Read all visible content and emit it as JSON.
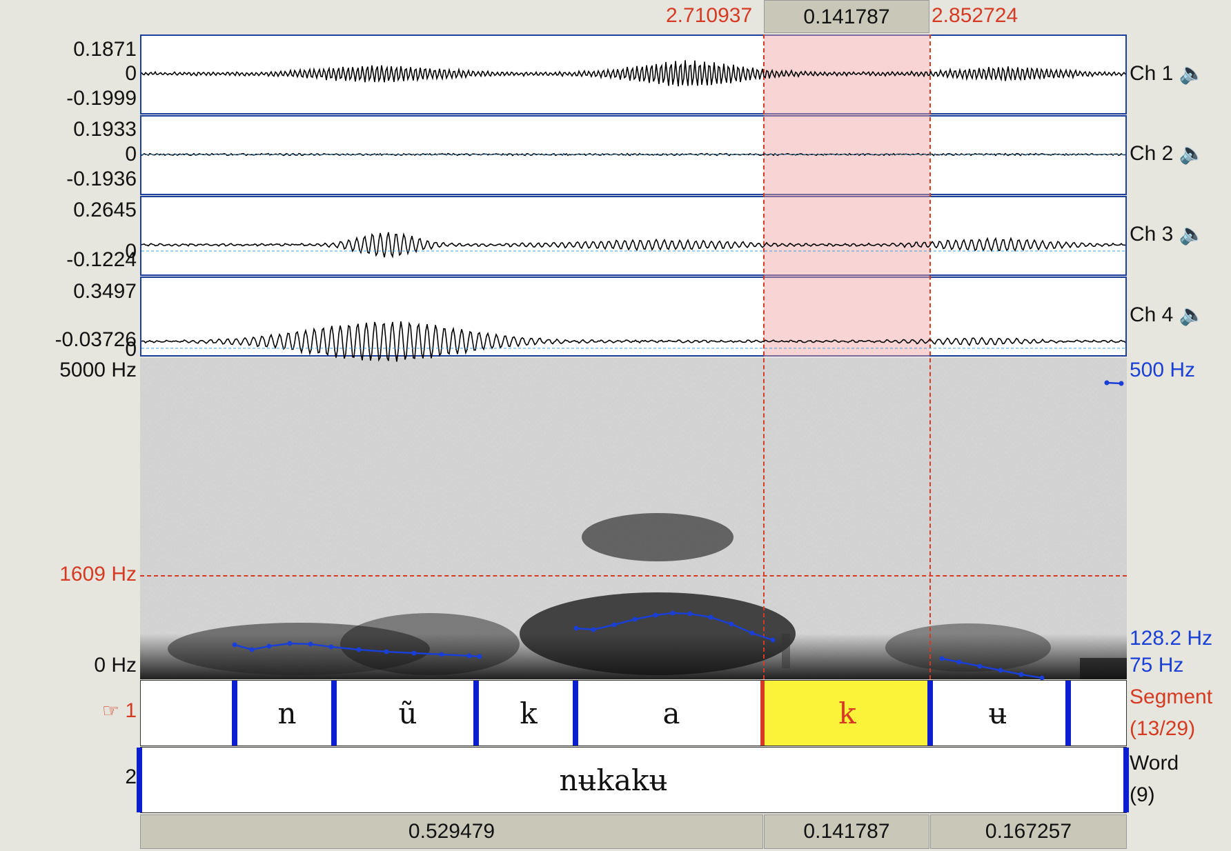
{
  "selection": {
    "start": "2.710937",
    "duration": "0.141787",
    "end": "2.852724"
  },
  "channels": [
    {
      "label": "Ch 1",
      "max": "0.1871",
      "zero": "0",
      "min": "-0.1999",
      "speaker_icon": "speaker-icon"
    },
    {
      "label": "Ch 2",
      "max": "0.1933",
      "zero": "0",
      "min": "-0.1936",
      "speaker_icon": "speaker-icon"
    },
    {
      "label": "Ch 3",
      "max": "0.2645",
      "zero": "0",
      "min": "-0.1224",
      "speaker_icon": "speaker-icon"
    },
    {
      "label": "Ch 4",
      "max": "0.3497",
      "zero": "0",
      "min": "-0.03726",
      "speaker_icon": "speaker-icon"
    }
  ],
  "spectrogram": {
    "top_freq": "5000 Hz",
    "cursor_freq": "1609 Hz",
    "bottom_freq": "0 Hz",
    "pitch_top": "500 Hz",
    "pitch_value": "128.2 Hz",
    "pitch_bottom": "75 Hz"
  },
  "tiers": [
    {
      "number": "1",
      "pointer_icon": "☞",
      "name": "Segment",
      "count": "(13/29)",
      "segments": [
        "n",
        "ũ",
        "k",
        "a",
        "k",
        "ʉ"
      ],
      "selected_index": 4
    },
    {
      "number": "2",
      "name": "Word",
      "count": "(9)",
      "segments": [
        "nʉkakʉ"
      ]
    }
  ],
  "durations": [
    "0.529479",
    "0.141787",
    "0.167257"
  ],
  "colors": {
    "selection": "#f5d3d3",
    "cursor": "#d63a22",
    "pitch": "#1a3fd6",
    "highlight": "#fbf23a",
    "boundary": "#0b1fd0"
  }
}
